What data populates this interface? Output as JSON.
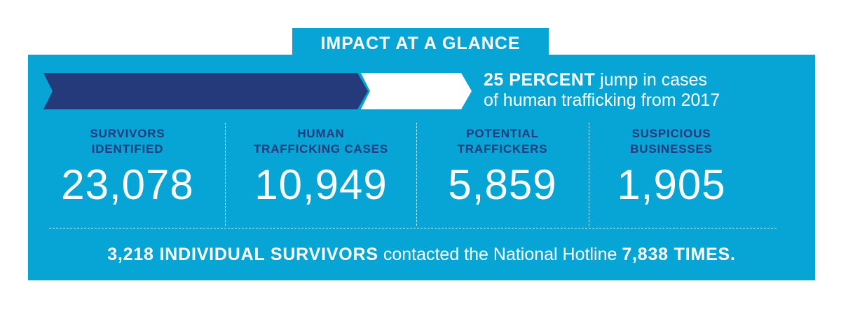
{
  "header": {
    "title": "IMPACT AT A GLANCE"
  },
  "highlight": {
    "emphasis": "25 PERCENT",
    "lines": [
      "jump in cases",
      "of human trafficking from 2017"
    ]
  },
  "stats": [
    {
      "label_lines": [
        "SURVIVORS",
        "IDENTIFIED"
      ],
      "value": "23,078"
    },
    {
      "label_lines": [
        "HUMAN",
        "TRAFFICKING CASES"
      ],
      "value": "10,949"
    },
    {
      "label_lines": [
        "POTENTIAL",
        "TRAFFICKERS"
      ],
      "value": "5,859"
    },
    {
      "label_lines": [
        "SUSPICIOUS",
        "BUSINESSES"
      ],
      "value": "1,905"
    }
  ],
  "footer": {
    "parts": [
      "3,218 INDIVIDUAL SURVIVORS",
      "contacted the National Hotline",
      "7,838 TIMES."
    ]
  }
}
